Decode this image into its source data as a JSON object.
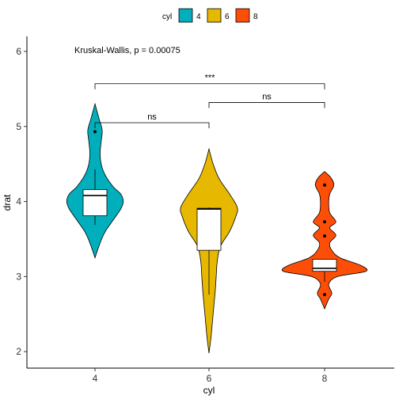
{
  "chart_data": {
    "type": "violin",
    "xlabel": "cyl",
    "ylabel": "drat",
    "ylim": [
      1.78,
      6.2
    ],
    "yticks": [
      2,
      3,
      4,
      5,
      6
    ],
    "categories": [
      "4",
      "6",
      "8"
    ],
    "legend": {
      "title": "cyl",
      "position": "top",
      "entries": [
        "4",
        "6",
        "8"
      ]
    },
    "grid": false,
    "annotation": "Kruskal-Wallis, p = 0.00075",
    "series": [
      {
        "name": "4",
        "color": "#00AFBB",
        "violin": [
          [
            3.25,
            0
          ],
          [
            3.45,
            0.1
          ],
          [
            3.6,
            0.2
          ],
          [
            3.75,
            0.35
          ],
          [
            3.9,
            0.5
          ],
          [
            4.0,
            0.55
          ],
          [
            4.1,
            0.5
          ],
          [
            4.2,
            0.35
          ],
          [
            4.35,
            0.2
          ],
          [
            4.5,
            0.12
          ],
          [
            4.65,
            0.1
          ],
          [
            4.8,
            0.12
          ],
          [
            4.95,
            0.14
          ],
          [
            5.1,
            0.08
          ],
          [
            5.3,
            0
          ]
        ],
        "box": {
          "q1": 3.81,
          "median": 4.08,
          "q3": 4.16,
          "whisker_low": 3.69,
          "whisker_high": 4.43
        },
        "outliers": [
          4.93
        ]
      },
      {
        "name": "6",
        "color": "#E7B800",
        "violin": [
          [
            1.98,
            0
          ],
          [
            2.2,
            0.04
          ],
          [
            2.5,
            0.08
          ],
          [
            2.8,
            0.12
          ],
          [
            3.0,
            0.14
          ],
          [
            3.2,
            0.16
          ],
          [
            3.4,
            0.22
          ],
          [
            3.6,
            0.4
          ],
          [
            3.8,
            0.52
          ],
          [
            3.92,
            0.55
          ],
          [
            4.1,
            0.4
          ],
          [
            4.3,
            0.2
          ],
          [
            4.5,
            0.08
          ],
          [
            4.7,
            0
          ]
        ],
        "box": {
          "q1": 3.35,
          "median": 3.9,
          "q3": 3.91,
          "whisker_low": 2.76,
          "whisker_high": 3.92
        },
        "outliers": []
      },
      {
        "name": "8",
        "color": "#FC4E07",
        "violin": [
          [
            2.57,
            0
          ],
          [
            2.7,
            0.08
          ],
          [
            2.78,
            0.14
          ],
          [
            2.9,
            0.08
          ],
          [
            3.0,
            0.25
          ],
          [
            3.07,
            0.8
          ],
          [
            3.15,
            0.7
          ],
          [
            3.25,
            0.3
          ],
          [
            3.35,
            0.14
          ],
          [
            3.45,
            0.1
          ],
          [
            3.55,
            0.22
          ],
          [
            3.65,
            0.1
          ],
          [
            3.73,
            0.22
          ],
          [
            3.85,
            0.1
          ],
          [
            4.0,
            0.08
          ],
          [
            4.1,
            0.1
          ],
          [
            4.22,
            0.18
          ],
          [
            4.32,
            0.12
          ],
          [
            4.4,
            0
          ]
        ],
        "box": {
          "q1": 3.07,
          "median": 3.11,
          "q3": 3.23,
          "whisker_low": 2.93,
          "whisker_high": 3.23
        },
        "outliers": [
          2.76,
          3.54,
          3.73,
          4.22
        ]
      }
    ],
    "comparisons": [
      {
        "groups": [
          "4",
          "6"
        ],
        "label": "ns",
        "y": 5.05
      },
      {
        "groups": [
          "6",
          "8"
        ],
        "label": "ns",
        "y": 5.32
      },
      {
        "groups": [
          "4",
          "8"
        ],
        "label": "***",
        "y": 5.57
      }
    ]
  }
}
